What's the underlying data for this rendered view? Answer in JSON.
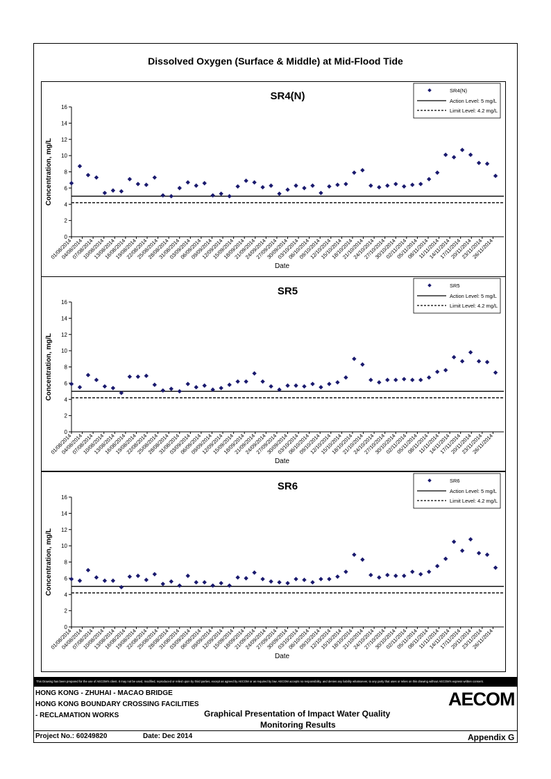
{
  "page_title": "Dissolved Oxygen (Surface & Middle) at Mid-Flood Tide",
  "chart_data": [
    {
      "type": "scatter",
      "title": "SR4(N)",
      "xlabel": "Date",
      "ylabel": "Concentration, mg/L",
      "ylim": [
        0,
        16
      ],
      "yticks": [
        0,
        2,
        4,
        6,
        8,
        10,
        12,
        14,
        16
      ],
      "legend_placement": "top-right",
      "series": [
        {
          "name": "SR4(N)",
          "marker": "diamond",
          "color": "#1a1a6e",
          "values": [
            6.6,
            8.7,
            7.6,
            7.3,
            5.4,
            5.7,
            5.6,
            7.1,
            6.5,
            6.4,
            7.3,
            5.1,
            5.0,
            6.0,
            6.7,
            6.3,
            6.6,
            5.1,
            5.3,
            5.0,
            6.2,
            6.9,
            6.7,
            6.1,
            6.3,
            5.3,
            5.8,
            6.3,
            6.0,
            6.3,
            5.4,
            6.2,
            6.4,
            6.5,
            7.9,
            8.2,
            6.3,
            6.1,
            6.3,
            6.5,
            6.2,
            6.4,
            6.5,
            7.1,
            7.9,
            10.1,
            9.8,
            10.7,
            10.1,
            9.1,
            9.0,
            7.5
          ]
        }
      ],
      "reference_lines": [
        {
          "name": "Action Level: 5 mg/L",
          "value": 5,
          "style": "solid"
        },
        {
          "name": "Limit Level: 4.2 mg/L",
          "value": 4.2,
          "style": "dashed"
        }
      ]
    },
    {
      "type": "scatter",
      "title": "SR5",
      "xlabel": "Date",
      "ylabel": "Concentration, mg/L",
      "ylim": [
        0,
        16
      ],
      "yticks": [
        0,
        2,
        4,
        6,
        8,
        10,
        12,
        14,
        16
      ],
      "legend_placement": "top-right",
      "series": [
        {
          "name": "SR5",
          "marker": "diamond",
          "color": "#1a1a6e",
          "values": [
            5.9,
            5.5,
            7.0,
            6.4,
            5.6,
            5.4,
            4.8,
            6.8,
            6.8,
            6.9,
            5.8,
            5.1,
            5.3,
            5.0,
            5.9,
            5.5,
            5.7,
            5.2,
            5.4,
            5.8,
            6.2,
            6.2,
            7.2,
            6.2,
            5.6,
            5.2,
            5.7,
            5.7,
            5.6,
            5.9,
            5.5,
            5.9,
            6.1,
            6.7,
            9.0,
            8.3,
            6.4,
            6.1,
            6.4,
            6.4,
            6.5,
            6.4,
            6.4,
            6.7,
            7.4,
            7.6,
            9.2,
            8.7,
            9.8,
            8.7,
            8.6,
            7.3
          ]
        }
      ],
      "reference_lines": [
        {
          "name": "Action Level: 5 mg/L",
          "value": 5,
          "style": "solid"
        },
        {
          "name": "Limit Level: 4.2 mg/L",
          "value": 4.2,
          "style": "dashed"
        }
      ]
    },
    {
      "type": "scatter",
      "title": "SR6",
      "xlabel": "Date",
      "ylabel": "Concentration, mg/L",
      "ylim": [
        0,
        16
      ],
      "yticks": [
        0,
        2,
        4,
        6,
        8,
        10,
        12,
        14,
        16
      ],
      "legend_placement": "top-right",
      "series": [
        {
          "name": "SR6",
          "marker": "diamond",
          "color": "#1a1a6e",
          "values": [
            5.9,
            5.7,
            7.0,
            6.1,
            5.7,
            5.7,
            4.9,
            6.2,
            6.3,
            5.8,
            6.5,
            5.3,
            5.6,
            5.1,
            6.3,
            5.5,
            5.5,
            5.1,
            5.4,
            5.1,
            6.1,
            6.0,
            6.7,
            5.9,
            5.6,
            5.5,
            5.4,
            5.9,
            5.8,
            5.5,
            5.9,
            5.9,
            6.2,
            6.8,
            8.9,
            8.3,
            6.4,
            6.1,
            6.4,
            6.3,
            6.3,
            6.8,
            6.5,
            6.8,
            7.5,
            8.4,
            10.5,
            9.4,
            10.8,
            9.1,
            8.9,
            7.3
          ]
        }
      ],
      "reference_lines": [
        {
          "name": "Action Level: 5 mg/L",
          "value": 5,
          "style": "solid"
        },
        {
          "name": "Limit Level: 4.2 mg/L",
          "value": 4.2,
          "style": "dashed"
        }
      ]
    }
  ],
  "x_tick_labels": [
    "01/08/2014",
    "04/08/2014",
    "07/08/2014",
    "10/08/2014",
    "13/08/2014",
    "16/08/2014",
    "19/08/2014",
    "22/08/2014",
    "25/08/2014",
    "28/08/2014",
    "31/08/2014",
    "03/09/2014",
    "06/09/2014",
    "09/09/2014",
    "12/09/2014",
    "15/09/2014",
    "18/09/2014",
    "21/09/2014",
    "24/09/2014",
    "27/09/2014",
    "30/09/2014",
    "03/10/2014",
    "06/10/2014",
    "09/10/2014",
    "12/10/2014",
    "15/10/2014",
    "18/10/2014",
    "21/10/2014",
    "24/10/2014",
    "27/10/2014",
    "30/10/2014",
    "02/11/2014",
    "05/11/2014",
    "08/11/2014",
    "11/11/2014",
    "14/11/2014",
    "17/11/2014",
    "20/11/2014",
    "23/11/2014",
    "26/11/2014"
  ],
  "x_range": [
    "01/08/2014",
    "29/11/2014"
  ],
  "footer": {
    "disclaimer": "This Drawing has been prepared for the use of AECOM's client. It may not be used, modified, reproduced or relied upon by third parties, except as agreed by AECOM or as required by law. AECOM accepts no responsibility, and denies any liability whatsoever, to any party that uses or relies on this drawing without AECOM's express written consent.",
    "project_line1": "HONG KONG - ZHUHAI - MACAO BRIDGE",
    "project_line2": "HONG KONG BOUNDARY CROSSING FACILITIES",
    "project_line3": "- RECLAMATION WORKS",
    "description_line1": "Graphical Presentation of Impact Water Quality",
    "description_line2": "Monitoring Results",
    "project_no": "Project No.: 60249820",
    "date": "Date: Dec 2014",
    "appendix": "Appendix G",
    "logo": "AECOM"
  }
}
